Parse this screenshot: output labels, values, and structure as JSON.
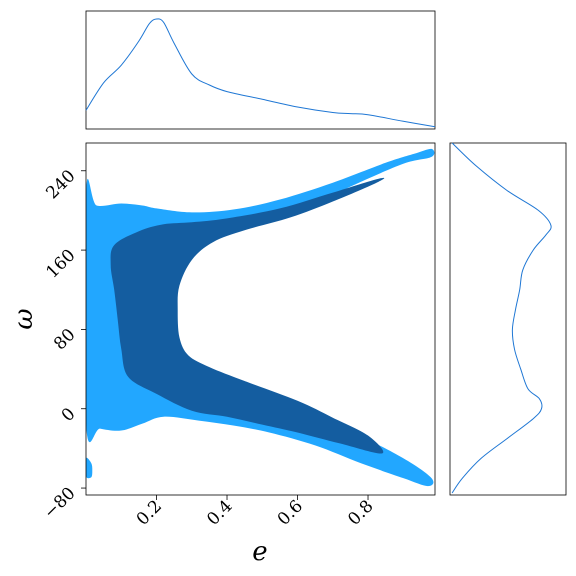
{
  "chart_data": {
    "type": "corner",
    "title": "",
    "colors": {
      "outer_contour": "#22a7ff",
      "inner_contour": "#145da0",
      "marginal_line": "#1f77d4"
    },
    "joint": {
      "xlabel": "e",
      "ylabel": "ω",
      "xlim": [
        0.0,
        0.99
      ],
      "ylim": [
        -87,
        268
      ],
      "xticks": [
        0.2,
        0.4,
        0.6,
        0.8
      ],
      "xtick_labels": [
        "0.2",
        "0.4",
        "0.6",
        "0.8"
      ],
      "yticks": [
        -80,
        0,
        80,
        160,
        240
      ],
      "ytick_labels": [
        "−80",
        "0",
        "80",
        "160",
        "240"
      ],
      "outer_region": [
        [
          0.0,
          218
        ],
        [
          0.03,
          205
        ],
        [
          0.1,
          207
        ],
        [
          0.16,
          205
        ],
        [
          0.2,
          202
        ],
        [
          0.3,
          198
        ],
        [
          0.42,
          201
        ],
        [
          0.55,
          211
        ],
        [
          0.7,
          228
        ],
        [
          0.85,
          248
        ],
        [
          0.93,
          257
        ],
        [
          0.98,
          262
        ],
        [
          0.98,
          254
        ],
        [
          0.9,
          247
        ],
        [
          0.75,
          224
        ],
        [
          0.6,
          198
        ],
        [
          0.45,
          182
        ],
        [
          0.35,
          168
        ],
        [
          0.29,
          152
        ],
        [
          0.26,
          128
        ],
        [
          0.255,
          100
        ],
        [
          0.26,
          72
        ],
        [
          0.29,
          50
        ],
        [
          0.35,
          37
        ],
        [
          0.45,
          23
        ],
        [
          0.6,
          4
        ],
        [
          0.75,
          -22
        ],
        [
          0.9,
          -50
        ],
        [
          0.98,
          -70
        ],
        [
          0.97,
          -78
        ],
        [
          0.9,
          -70
        ],
        [
          0.78,
          -55
        ],
        [
          0.65,
          -37
        ],
        [
          0.52,
          -24
        ],
        [
          0.42,
          -17
        ],
        [
          0.32,
          -12
        ],
        [
          0.22,
          -8
        ],
        [
          0.16,
          -15
        ],
        [
          0.1,
          -22
        ],
        [
          0.04,
          -20
        ],
        [
          0.0,
          -15
        ]
      ],
      "inner_region": [
        [
          0.08,
          165
        ],
        [
          0.15,
          179
        ],
        [
          0.22,
          186
        ],
        [
          0.3,
          188
        ],
        [
          0.4,
          192
        ],
        [
          0.55,
          202
        ],
        [
          0.7,
          218
        ],
        [
          0.83,
          232
        ],
        [
          0.83,
          229
        ],
        [
          0.7,
          209
        ],
        [
          0.58,
          193
        ],
        [
          0.45,
          180
        ],
        [
          0.36,
          168
        ],
        [
          0.3,
          150
        ],
        [
          0.265,
          124
        ],
        [
          0.26,
          100
        ],
        [
          0.265,
          72
        ],
        [
          0.29,
          54
        ],
        [
          0.35,
          42
        ],
        [
          0.45,
          28
        ],
        [
          0.6,
          8
        ],
        [
          0.7,
          -9
        ],
        [
          0.8,
          -27
        ],
        [
          0.84,
          -45
        ],
        [
          0.72,
          -35
        ],
        [
          0.6,
          -24
        ],
        [
          0.5,
          -16
        ],
        [
          0.4,
          -8
        ],
        [
          0.3,
          -2
        ],
        [
          0.2,
          15
        ],
        [
          0.12,
          32
        ],
        [
          0.1,
          60
        ],
        [
          0.09,
          90
        ],
        [
          0.08,
          120
        ],
        [
          0.07,
          145
        ]
      ],
      "outer_island": [
        [
          0.0,
          -50
        ],
        [
          0.015,
          -55
        ],
        [
          0.018,
          -62
        ],
        [
          0.015,
          -69
        ],
        [
          0.0,
          -68
        ]
      ]
    },
    "marginal_e": {
      "xlim": [
        0.0,
        0.99
      ],
      "x": [
        0.0,
        0.05,
        0.1,
        0.15,
        0.18,
        0.2,
        0.22,
        0.25,
        0.3,
        0.35,
        0.4,
        0.5,
        0.6,
        0.7,
        0.75,
        0.8,
        0.9,
        0.99
      ],
      "density": [
        0.17,
        0.42,
        0.58,
        0.8,
        0.96,
        1.0,
        0.97,
        0.78,
        0.5,
        0.4,
        0.34,
        0.27,
        0.2,
        0.15,
        0.14,
        0.13,
        0.07,
        0.02
      ]
    },
    "marginal_omega": {
      "ylim": [
        -87,
        268
      ],
      "y": [
        -85,
        -70,
        -50,
        -30,
        -10,
        0,
        10,
        20,
        40,
        60,
        80,
        100,
        120,
        140,
        160,
        175,
        185,
        200,
        220,
        245,
        268
      ],
      "density": [
        0.02,
        0.12,
        0.3,
        0.55,
        0.8,
        0.88,
        0.86,
        0.75,
        0.68,
        0.62,
        0.6,
        0.63,
        0.67,
        0.7,
        0.8,
        0.92,
        0.97,
        0.85,
        0.55,
        0.25,
        0.02
      ]
    }
  }
}
